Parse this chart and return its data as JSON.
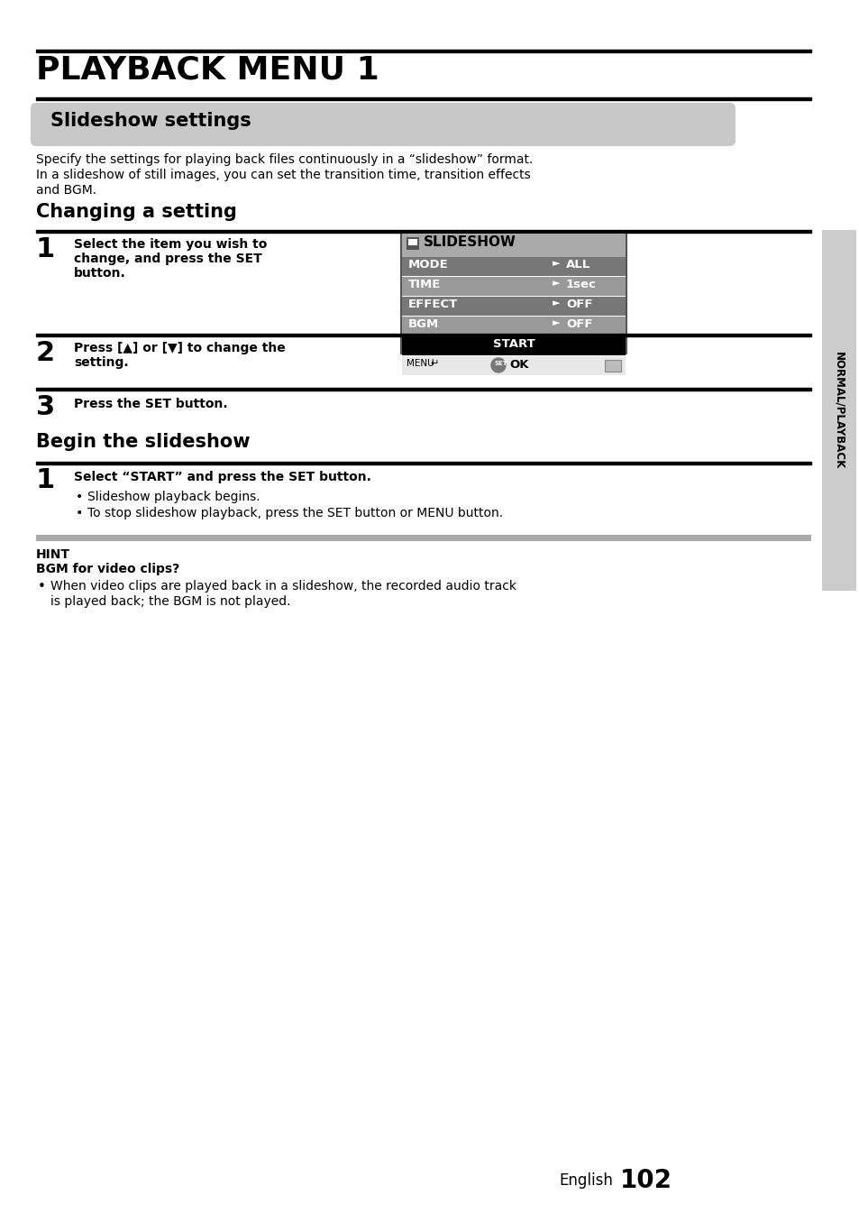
{
  "title": "PLAYBACK MENU 1",
  "section_title": "Slideshow settings",
  "section_bg": "#c8c8c8",
  "body_text1": "Specify the settings for playing back files continuously in a “slideshow” format.",
  "body_text2": "In a slideshow of still images, you can set the transition time, transition effects",
  "body_text3": "and BGM.",
  "subsection1": "Changing a setting",
  "step1_num": "1",
  "step1_line1": "Select the item you wish to",
  "step1_line2": "change, and press the SET",
  "step1_line3": "button.",
  "step2_num": "2",
  "step2_line1": "Press [▲] or [▼] to change the",
  "step2_line2": "setting.",
  "step3_num": "3",
  "step3_text": "Press the SET button.",
  "subsection2": "Begin the slideshow",
  "step4_num": "1",
  "step4_bold": "Select “START” and press the SET button.",
  "step4_bullet1": "Slideshow playback begins.",
  "step4_bullet2": "To stop slideshow playback, press the SET button or MENU button.",
  "hint_label": "HINT",
  "hint_subtitle": "BGM for video clips?",
  "hint_bullet": "When video clips are played back in a slideshow, the recorded audio track",
  "hint_bullet2": "is played back; the BGM is not played.",
  "footer_text": "English",
  "footer_num": "102",
  "sidebar_text": "NORMAL/PLAYBACK",
  "menu_title": "SLIDESHOW",
  "menu_rows": [
    "MODE",
    "TIME",
    "EFFECT",
    "BGM"
  ],
  "menu_values": [
    "ALL",
    "1sec",
    "OFF",
    "OFF"
  ],
  "menu_start": "START",
  "menu_footer_left": "MENU",
  "menu_footer_center": "OK",
  "bg_color": "#ffffff",
  "text_color": "#000000",
  "menu_row_dark": "#777777",
  "menu_row_light": "#999999",
  "menu_header_bg": "#aaaaaa",
  "sidebar_color": "#cccccc",
  "hint_bar_color": "#aaaaaa"
}
